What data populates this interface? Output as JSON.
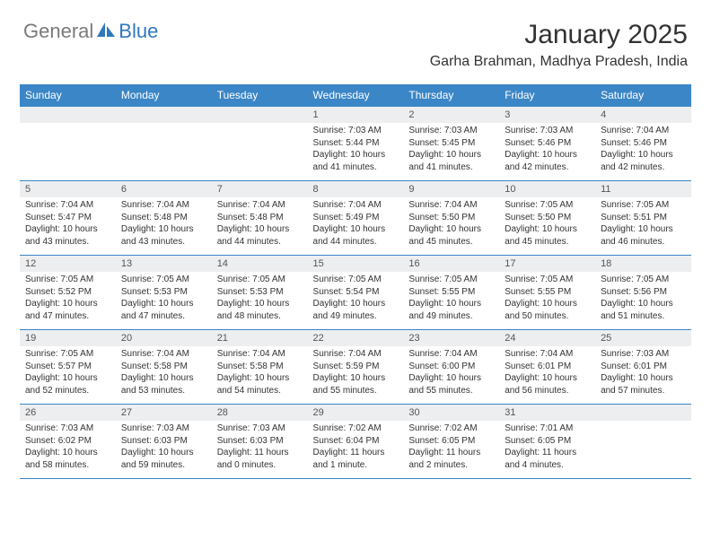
{
  "logo": {
    "part1": "General",
    "part2": "Blue"
  },
  "title": "January 2025",
  "location": "Garha Brahman, Madhya Pradesh, India",
  "colors": {
    "header_bg": "#3b86c6",
    "header_text": "#ffffff",
    "daynum_bg": "#eceeef",
    "daynum_text": "#555555",
    "body_text": "#333333",
    "rule": "#3b86c6",
    "logo_gray": "#7a7a7a",
    "logo_blue": "#2f78bd"
  },
  "day_headers": [
    "Sunday",
    "Monday",
    "Tuesday",
    "Wednesday",
    "Thursday",
    "Friday",
    "Saturday"
  ],
  "weeks": [
    [
      null,
      null,
      null,
      {
        "n": "1",
        "sr": "7:03 AM",
        "ss": "5:44 PM",
        "dl": "10 hours and 41 minutes."
      },
      {
        "n": "2",
        "sr": "7:03 AM",
        "ss": "5:45 PM",
        "dl": "10 hours and 41 minutes."
      },
      {
        "n": "3",
        "sr": "7:03 AM",
        "ss": "5:46 PM",
        "dl": "10 hours and 42 minutes."
      },
      {
        "n": "4",
        "sr": "7:04 AM",
        "ss": "5:46 PM",
        "dl": "10 hours and 42 minutes."
      }
    ],
    [
      {
        "n": "5",
        "sr": "7:04 AM",
        "ss": "5:47 PM",
        "dl": "10 hours and 43 minutes."
      },
      {
        "n": "6",
        "sr": "7:04 AM",
        "ss": "5:48 PM",
        "dl": "10 hours and 43 minutes."
      },
      {
        "n": "7",
        "sr": "7:04 AM",
        "ss": "5:48 PM",
        "dl": "10 hours and 44 minutes."
      },
      {
        "n": "8",
        "sr": "7:04 AM",
        "ss": "5:49 PM",
        "dl": "10 hours and 44 minutes."
      },
      {
        "n": "9",
        "sr": "7:04 AM",
        "ss": "5:50 PM",
        "dl": "10 hours and 45 minutes."
      },
      {
        "n": "10",
        "sr": "7:05 AM",
        "ss": "5:50 PM",
        "dl": "10 hours and 45 minutes."
      },
      {
        "n": "11",
        "sr": "7:05 AM",
        "ss": "5:51 PM",
        "dl": "10 hours and 46 minutes."
      }
    ],
    [
      {
        "n": "12",
        "sr": "7:05 AM",
        "ss": "5:52 PM",
        "dl": "10 hours and 47 minutes."
      },
      {
        "n": "13",
        "sr": "7:05 AM",
        "ss": "5:53 PM",
        "dl": "10 hours and 47 minutes."
      },
      {
        "n": "14",
        "sr": "7:05 AM",
        "ss": "5:53 PM",
        "dl": "10 hours and 48 minutes."
      },
      {
        "n": "15",
        "sr": "7:05 AM",
        "ss": "5:54 PM",
        "dl": "10 hours and 49 minutes."
      },
      {
        "n": "16",
        "sr": "7:05 AM",
        "ss": "5:55 PM",
        "dl": "10 hours and 49 minutes."
      },
      {
        "n": "17",
        "sr": "7:05 AM",
        "ss": "5:55 PM",
        "dl": "10 hours and 50 minutes."
      },
      {
        "n": "18",
        "sr": "7:05 AM",
        "ss": "5:56 PM",
        "dl": "10 hours and 51 minutes."
      }
    ],
    [
      {
        "n": "19",
        "sr": "7:05 AM",
        "ss": "5:57 PM",
        "dl": "10 hours and 52 minutes."
      },
      {
        "n": "20",
        "sr": "7:04 AM",
        "ss": "5:58 PM",
        "dl": "10 hours and 53 minutes."
      },
      {
        "n": "21",
        "sr": "7:04 AM",
        "ss": "5:58 PM",
        "dl": "10 hours and 54 minutes."
      },
      {
        "n": "22",
        "sr": "7:04 AM",
        "ss": "5:59 PM",
        "dl": "10 hours and 55 minutes."
      },
      {
        "n": "23",
        "sr": "7:04 AM",
        "ss": "6:00 PM",
        "dl": "10 hours and 55 minutes."
      },
      {
        "n": "24",
        "sr": "7:04 AM",
        "ss": "6:01 PM",
        "dl": "10 hours and 56 minutes."
      },
      {
        "n": "25",
        "sr": "7:03 AM",
        "ss": "6:01 PM",
        "dl": "10 hours and 57 minutes."
      }
    ],
    [
      {
        "n": "26",
        "sr": "7:03 AM",
        "ss": "6:02 PM",
        "dl": "10 hours and 58 minutes."
      },
      {
        "n": "27",
        "sr": "7:03 AM",
        "ss": "6:03 PM",
        "dl": "10 hours and 59 minutes."
      },
      {
        "n": "28",
        "sr": "7:03 AM",
        "ss": "6:03 PM",
        "dl": "11 hours and 0 minutes."
      },
      {
        "n": "29",
        "sr": "7:02 AM",
        "ss": "6:04 PM",
        "dl": "11 hours and 1 minute."
      },
      {
        "n": "30",
        "sr": "7:02 AM",
        "ss": "6:05 PM",
        "dl": "11 hours and 2 minutes."
      },
      {
        "n": "31",
        "sr": "7:01 AM",
        "ss": "6:05 PM",
        "dl": "11 hours and 4 minutes."
      },
      null
    ]
  ],
  "labels": {
    "sunrise": "Sunrise: ",
    "sunset": "Sunset: ",
    "daylight": "Daylight: "
  }
}
